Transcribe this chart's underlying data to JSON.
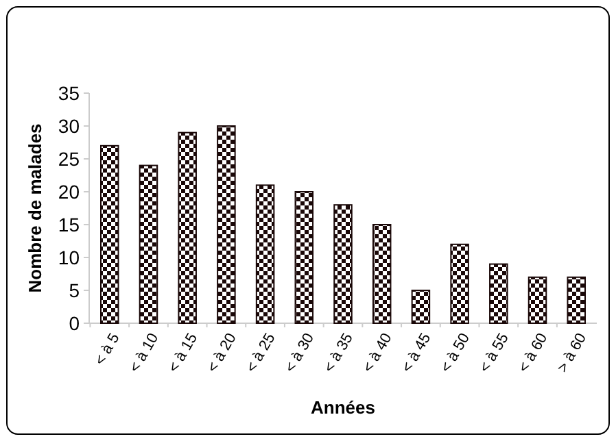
{
  "chart_data": {
    "type": "bar",
    "xlabel": "Années",
    "ylabel": "Nombre de malades",
    "categories": [
      "< à 5",
      "< à 10",
      "< à 15",
      "< à 20",
      "< à 25",
      "< à 30",
      "< à 35",
      "< à 40",
      "< à 45",
      "< à 50",
      "< à 55",
      "< à 60",
      "> à 60"
    ],
    "values": [
      27,
      24,
      29,
      30,
      21,
      20,
      18,
      15,
      5,
      12,
      9,
      7,
      7
    ],
    "color": "#1a0808",
    "ylim": [
      0,
      35
    ],
    "yticks": [
      0,
      5,
      10,
      15,
      20,
      25,
      30,
      35
    ],
    "grid": false
  }
}
